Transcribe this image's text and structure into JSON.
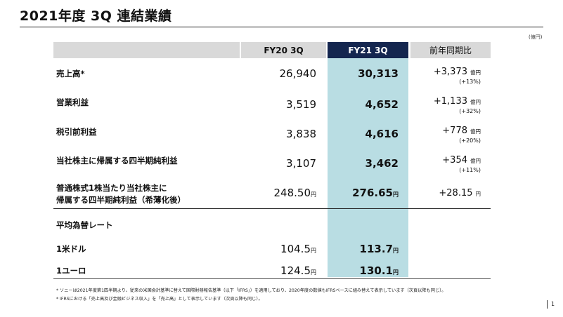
{
  "title": "2021年度 3Q 連結業績",
  "unit": "(億円)",
  "headers": {
    "fy20": "FY20 3Q",
    "fy21": "FY21 3Q",
    "yoy": "前年同期比"
  },
  "rows": [
    {
      "label": "売上高*",
      "fy20": "26,940",
      "fy21": "30,313",
      "yoy": "+3,373",
      "yoy_unit": "億円",
      "pct": "(+13%)"
    },
    {
      "label": "営業利益",
      "fy20": "3,519",
      "fy21": "4,652",
      "yoy": "+1,133",
      "yoy_unit": "億円",
      "pct": "(+32%)"
    },
    {
      "label": "税引前利益",
      "fy20": "3,838",
      "fy21": "4,616",
      "yoy": "+778",
      "yoy_unit": "億円",
      "pct": "(+20%)"
    },
    {
      "label": "当社株主に帰属する四半期純利益",
      "fy20": "3,107",
      "fy21": "3,462",
      "yoy": "+354",
      "yoy_unit": "億円",
      "pct": "(+11%)"
    },
    {
      "label_line1": "普通株式1株当たり当社株主に",
      "label_line2": "帰属する四半期純利益（希薄化後）",
      "fy20": "248.50",
      "fy20_suffix": "円",
      "fy21": "276.65",
      "fy21_suffix": "円",
      "yoy": "+28.15",
      "yoy_unit": "円"
    }
  ],
  "fx_section": {
    "heading": "平均為替レート",
    "rows": [
      {
        "label": "1米ドル",
        "fy20": "104.5",
        "fy20_suffix": "円",
        "fy21": "113.7",
        "fy21_suffix": "円"
      },
      {
        "label": "1ユーロ",
        "fy20": "124.5",
        "fy20_suffix": "円",
        "fy21": "130.1",
        "fy21_suffix": "円"
      }
    ]
  },
  "notes": [
    "* ソニーは2021年度第1四半期より、従来の米国会計基準に替えて国際財務報告基準（以下「IFRS」）を適用しており、2020年度の数値もIFRSベースに組み替えて表示しています（次頁以降も同じ）。",
    "* IFRSにおける「売上高及び金融ビジネス収入」を「売上高」として表示しています（次頁以降も同じ）。"
  ],
  "page_number": "1"
}
